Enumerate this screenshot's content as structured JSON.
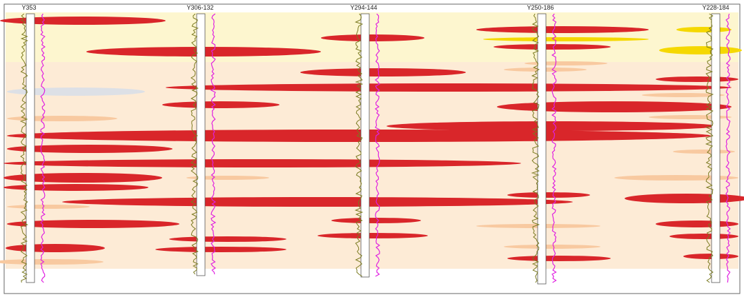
{
  "wells": [
    {
      "label": "Y353"
    },
    {
      "label": "Y306-132"
    },
    {
      "label": "Y294-144"
    },
    {
      "label": "Y250-186"
    },
    {
      "label": "Y228-184"
    }
  ]
}
